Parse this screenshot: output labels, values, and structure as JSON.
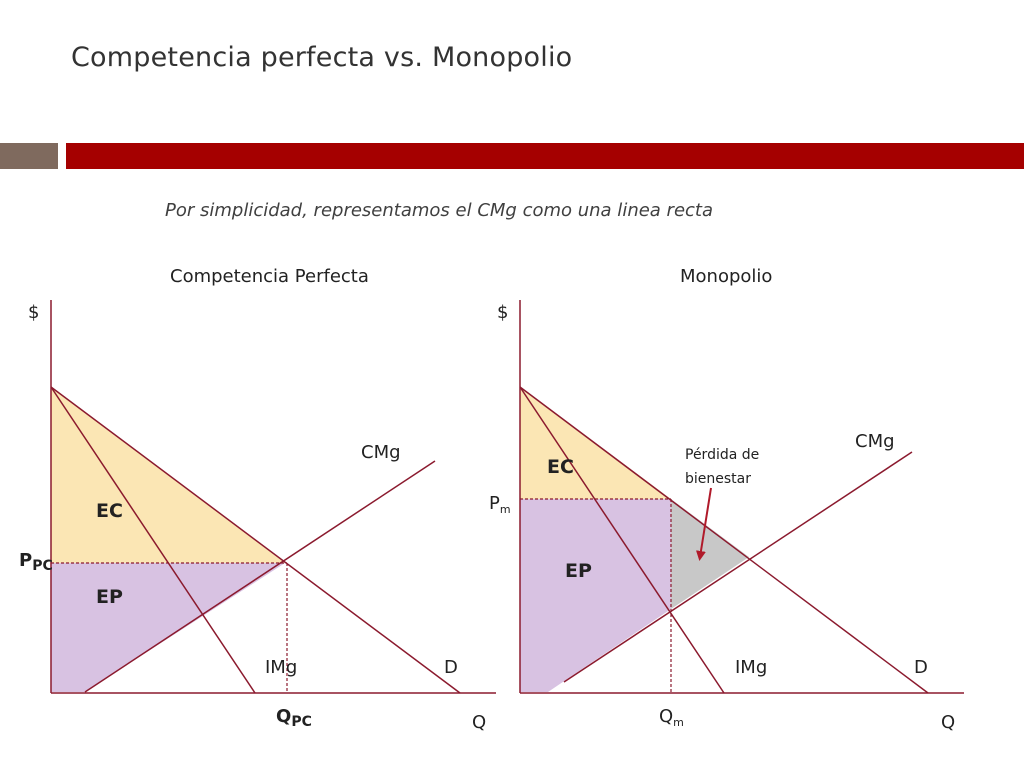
{
  "slide": {
    "title": "Competencia perfecta vs. Monopolio",
    "subtitle": "Por simplicidad, representamos el CMg como una linea recta",
    "colors": {
      "bar_left": "#7f6a5e",
      "bar_right": "#a50000",
      "curve": "#8b1a2e",
      "consumer_surplus": "#fbe6b4",
      "producer_surplus": "#d8c2e2",
      "deadweight_loss": "#c8c8c8",
      "arrow": "#b01a2a"
    }
  },
  "left_panel": {
    "heading": "Competencia Perfecta",
    "y_axis_label": "$",
    "x_axis_label": "Q",
    "supply_label": "CMg",
    "mr_label": "IMg",
    "demand_label": "D",
    "consumer_surplus_label": "EC",
    "producer_surplus_label": "EP",
    "price_label": "P",
    "price_sub": "PC",
    "quantity_label": "Q",
    "quantity_sub": "PC"
  },
  "right_panel": {
    "heading": "Monopolio",
    "y_axis_label": "$",
    "x_axis_label": "Q",
    "supply_label": "CMg",
    "mr_label": "IMg",
    "demand_label": "D",
    "consumer_surplus_label": "EC",
    "producer_surplus_label": "EP",
    "price_label": "P",
    "price_sub": "m",
    "quantity_label": "Q",
    "quantity_sub": "m",
    "deadweight_label_line1": "Pérdida de",
    "deadweight_label_line2": "bienestar"
  }
}
